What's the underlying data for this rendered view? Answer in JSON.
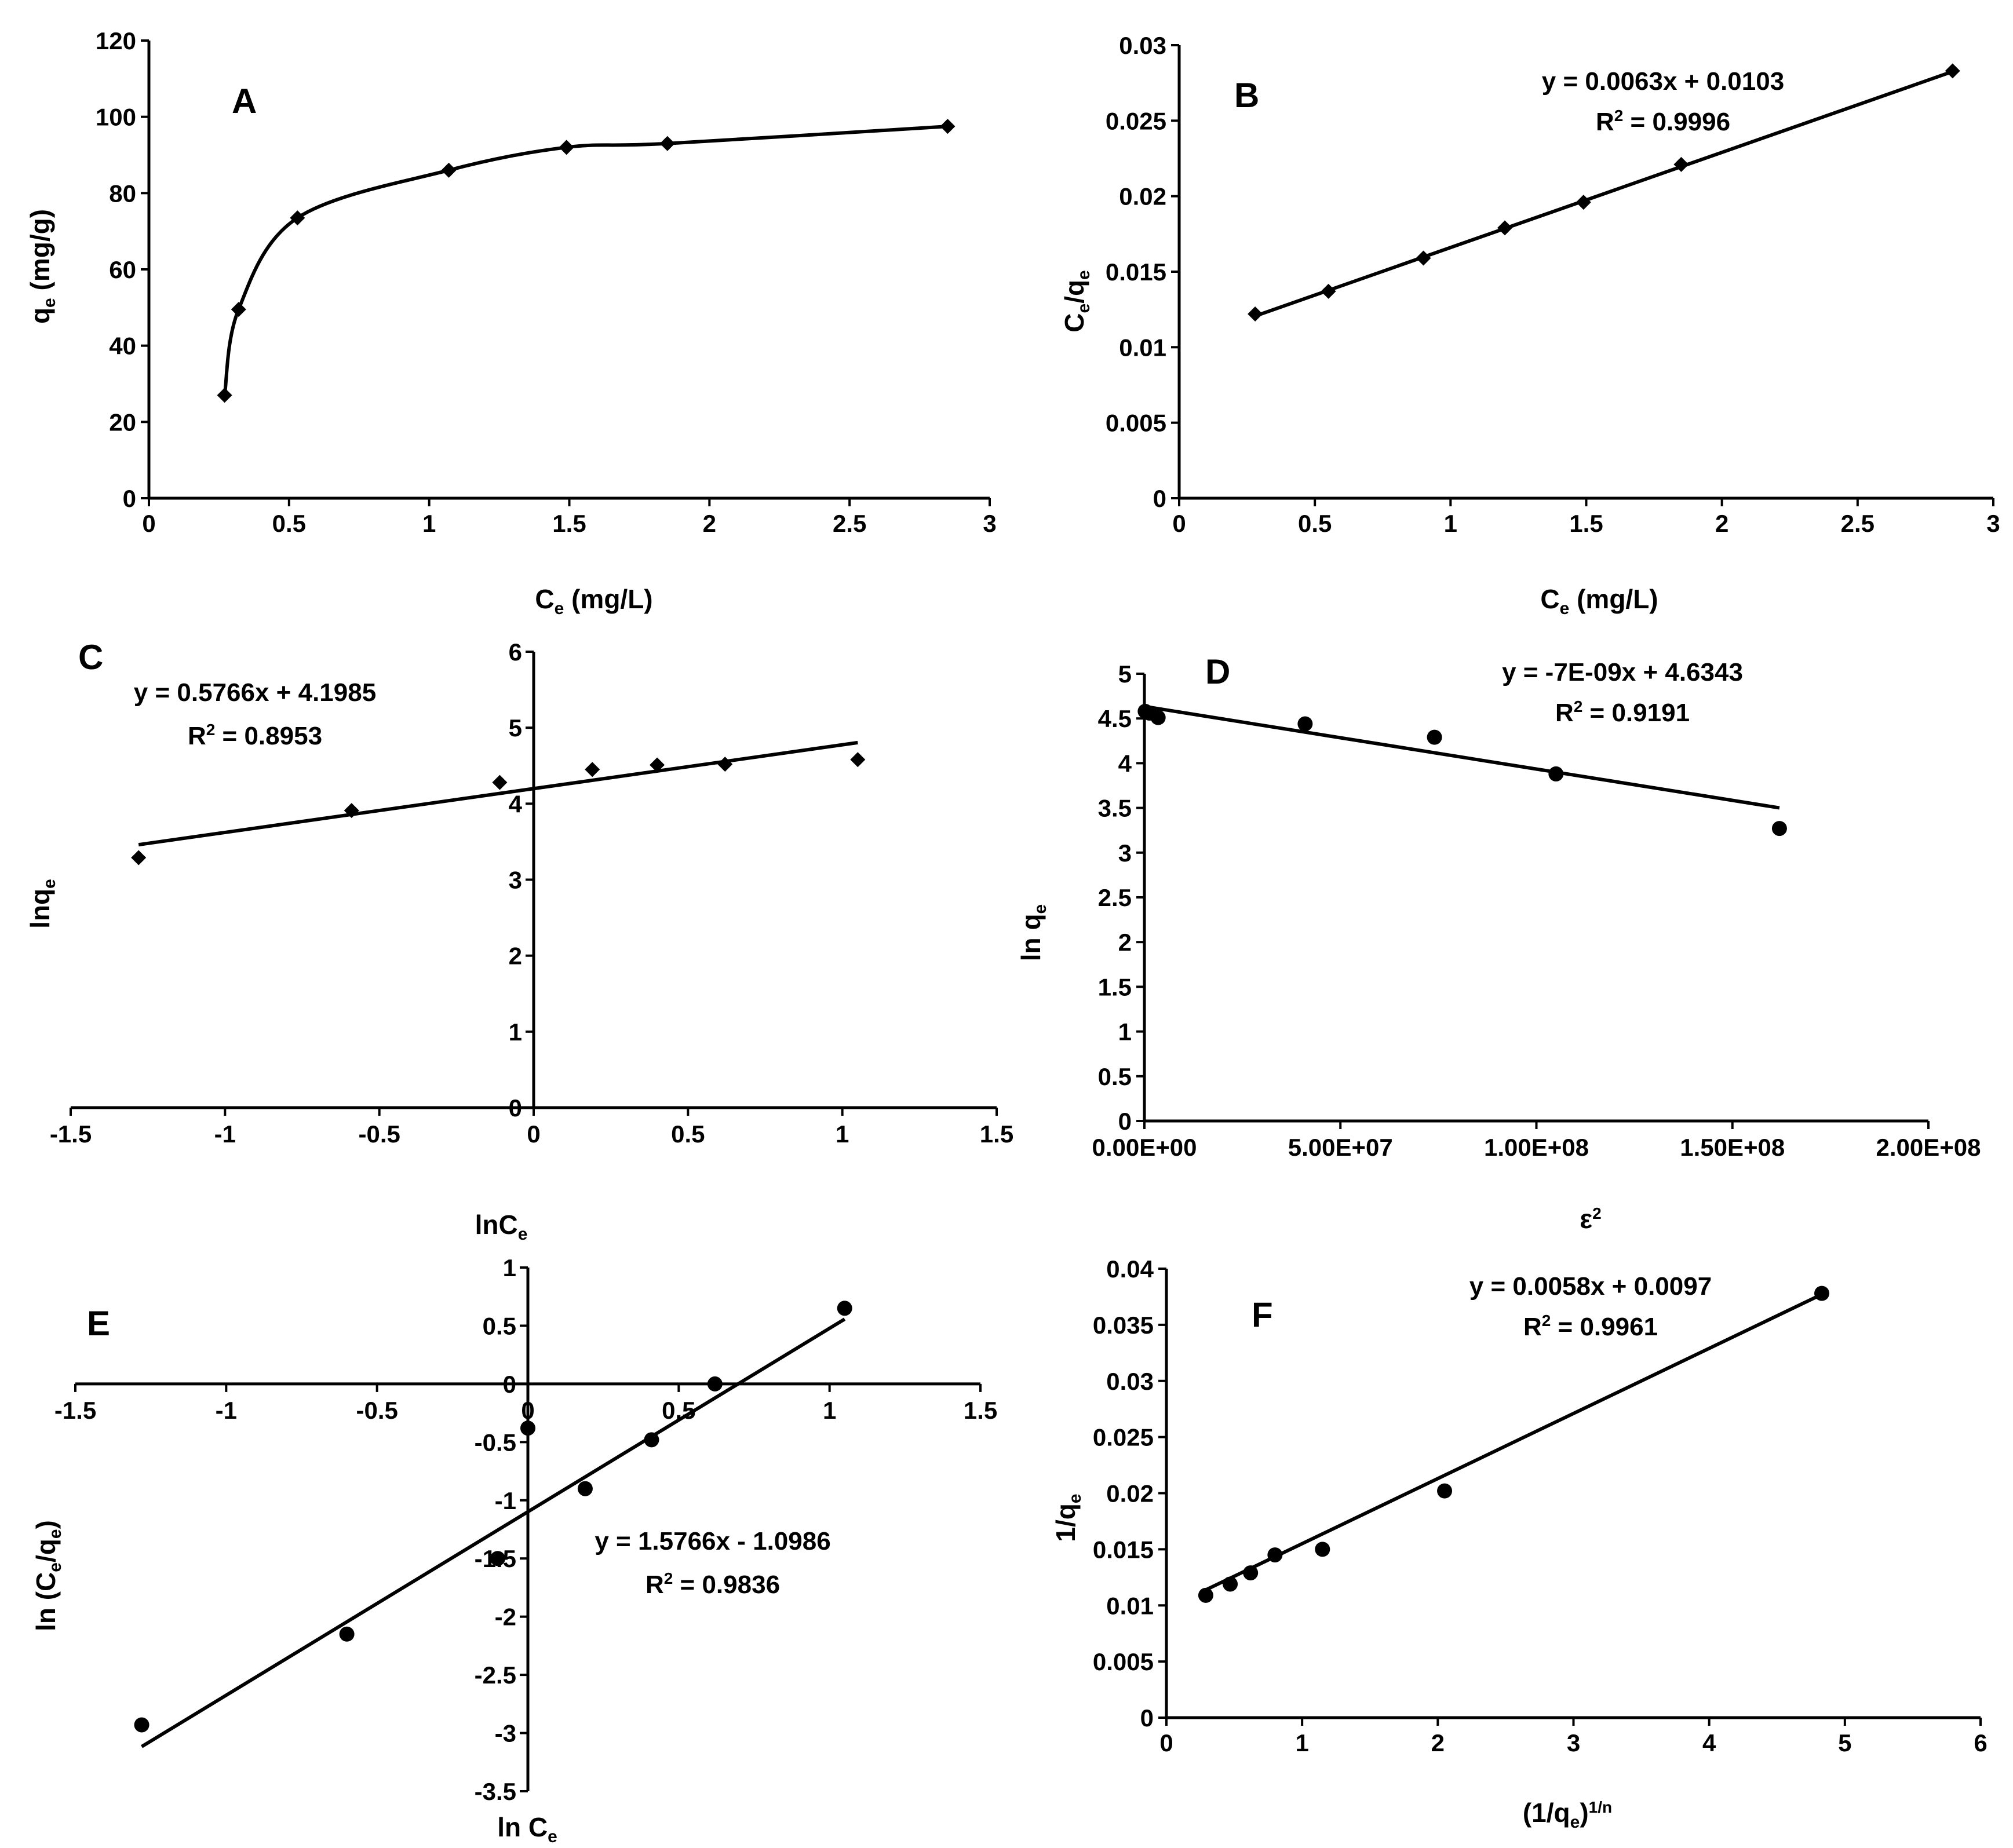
{
  "figure": {
    "panels": [
      {
        "id": "A",
        "label": "A",
        "xlabel": "C",
        "xlabel_sub": "e",
        "xlabel_tail": " (mg/L)",
        "ylabel": "q",
        "ylabel_sub": "e",
        "ylabel_tail": " (mg/g)",
        "equation": "",
        "r2": ""
      },
      {
        "id": "B",
        "label": "B",
        "xlabel": "C",
        "xlabel_sub": "e",
        "xlabel_tail": " (mg/L)",
        "ylabel": "C",
        "ylabel_sub": "e",
        "ylabel_tail": "/q",
        "ylabel_sub2": "e",
        "equation": "y = 0.0063x + 0.0103",
        "r2": "R",
        "r2_sup": "2",
        "r2_tail": " = 0.9996"
      },
      {
        "id": "C",
        "label": "C",
        "xlabel": "lnC",
        "xlabel_sub": "e",
        "ylabel": "lnq",
        "ylabel_sub": "e",
        "equation": "y = 0.5766x + 4.1985",
        "r2": "R",
        "r2_sup": "2",
        "r2_tail": " = 0.8953"
      },
      {
        "id": "D",
        "label": "D",
        "xlabel": "ε",
        "xlabel_sup": "2",
        "ylabel": "ln q",
        "ylabel_sub": "e",
        "equation": "y = -7E-09x + 4.6343",
        "r2": "R",
        "r2_sup": "2",
        "r2_tail": " = 0.9191"
      },
      {
        "id": "E",
        "label": "E",
        "xlabel": "ln C",
        "xlabel_sub": "e",
        "ylabel": "ln (C",
        "ylabel_sub": "e",
        "ylabel_tail": "/q",
        "ylabel_sub2": "e",
        "ylabel_tail2": ")",
        "equation": "y = 1.5766x - 1.0986",
        "r2": "R",
        "r2_sup": "2",
        "r2_tail": " = 0.9836"
      },
      {
        "id": "F",
        "label": "F",
        "xlabel": "(1/q",
        "xlabel_sub": "e",
        "xlabel_tail": ")",
        "xlabel_sup": "1/n",
        "ylabel": "1/q",
        "ylabel_sub": "e",
        "equation": "y = 0.0058x + 0.0097",
        "r2": "R",
        "r2_sup": "2",
        "r2_tail": " = 0.9961"
      }
    ]
  },
  "chart_data": [
    {
      "panel": "A",
      "type": "line",
      "smooth": true,
      "marker": "diamond",
      "title": "A",
      "xlabel": "Ce (mg/L)",
      "ylabel": "qe (mg/g)",
      "xlim": [
        0,
        3
      ],
      "ylim": [
        0,
        120
      ],
      "xticks": [
        0,
        0.5,
        1,
        1.5,
        2,
        2.5,
        3
      ],
      "xtick_labels": [
        "0",
        "0.5",
        "1",
        "1.5",
        "2",
        "2.5",
        "3"
      ],
      "yticks": [
        0,
        20,
        40,
        60,
        80,
        100,
        120
      ],
      "ytick_labels": [
        "0",
        "20",
        "40",
        "60",
        "80",
        "100",
        "120"
      ],
      "x": [
        0.27,
        0.32,
        0.53,
        1.07,
        1.49,
        1.85,
        2.85
      ],
      "y": [
        27,
        49.5,
        73.5,
        86,
        92,
        93,
        97.5
      ]
    },
    {
      "panel": "B",
      "type": "scatter",
      "marker": "diamond",
      "title": "B",
      "xlabel": "Ce (mg/L)",
      "ylabel": "Ce/qe",
      "xlim": [
        0,
        3
      ],
      "ylim": [
        0,
        0.03
      ],
      "xticks": [
        0,
        0.5,
        1,
        1.5,
        2,
        2.5,
        3
      ],
      "xtick_labels": [
        "0",
        "0.5",
        "1",
        "1.5",
        "2",
        "2.5",
        "3"
      ],
      "yticks": [
        0,
        0.005,
        0.01,
        0.015,
        0.02,
        0.025,
        0.03
      ],
      "ytick_labels": [
        "0",
        "0.005",
        "0.01",
        "0.015",
        "0.02",
        "0.025",
        "0.03"
      ],
      "x": [
        0.28,
        0.55,
        0.9,
        1.2,
        1.49,
        1.85,
        2.85
      ],
      "y": [
        0.0122,
        0.0137,
        0.0159,
        0.0179,
        0.0196,
        0.0221,
        0.0283
      ],
      "trendline": {
        "slope": 0.0063,
        "intercept": 0.0103,
        "x_range": [
          0.28,
          2.85
        ]
      },
      "annotation": "y = 0.0063x + 0.0103; R2 = 0.9996"
    },
    {
      "panel": "C",
      "type": "scatter",
      "marker": "diamond",
      "title": "C",
      "xlabel": "lnCe",
      "ylabel": "lnqe",
      "xlim": [
        -1.5,
        1.5
      ],
      "ylim": [
        0,
        6
      ],
      "xticks": [
        -1.5,
        -1,
        -0.5,
        0,
        0.5,
        1,
        1.5
      ],
      "xtick_labels": [
        "-1.5",
        "-1",
        "-0.5",
        "0",
        "0.5",
        "1",
        "1.5"
      ],
      "yticks": [
        0,
        1,
        2,
        3,
        4,
        5,
        6
      ],
      "ytick_labels": [
        "0",
        "1",
        "2",
        "3",
        "4",
        "5",
        "6"
      ],
      "x": [
        -1.28,
        -0.59,
        -0.11,
        0.19,
        0.4,
        0.62,
        1.05
      ],
      "y": [
        3.29,
        3.91,
        4.28,
        4.45,
        4.51,
        4.52,
        4.58
      ],
      "trendline": {
        "slope": 0.5766,
        "intercept": 4.1985,
        "x_range": [
          -1.28,
          1.05
        ]
      },
      "annotation": "y = 0.5766x + 4.1985; R2 = 0.8953"
    },
    {
      "panel": "D",
      "type": "scatter",
      "marker": "circle",
      "title": "D",
      "xlabel": "ε2",
      "ylabel": "ln qe",
      "xlim": [
        0,
        200000000
      ],
      "ylim": [
        0,
        5
      ],
      "xticks": [
        0,
        50000000,
        100000000,
        150000000,
        200000000
      ],
      "xtick_labels": [
        "0.00E+00",
        "5.00E+07",
        "1.00E+08",
        "1.50E+08",
        "2.00E+08"
      ],
      "yticks": [
        0,
        0.5,
        1,
        1.5,
        2,
        2.5,
        3,
        3.5,
        4,
        4.5,
        5
      ],
      "ytick_labels": [
        "0",
        "0.5",
        "1",
        "1.5",
        "2",
        "2.5",
        "3",
        "3.5",
        "4",
        "4.5",
        "5"
      ],
      "x": [
        200000,
        1300000,
        3500000,
        41000000,
        74000000,
        105000000,
        162000000
      ],
      "y": [
        4.58,
        4.56,
        4.51,
        4.44,
        4.29,
        3.88,
        3.27
      ],
      "trendline": {
        "slope": -7e-09,
        "intercept": 4.6343,
        "x_range": [
          0,
          162000000
        ]
      },
      "annotation": "y = -7E-09x + 4.6343; R2 = 0.9191"
    },
    {
      "panel": "E",
      "type": "scatter",
      "marker": "circle",
      "title": "E",
      "xlabel": "ln Ce",
      "ylabel": "ln (Ce/qe)",
      "xlim": [
        -1.5,
        1.5
      ],
      "ylim": [
        -3.5,
        1
      ],
      "xticks": [
        -1.5,
        -1,
        -0.5,
        0,
        0.5,
        1,
        1.5
      ],
      "xtick_labels": [
        "-1.5",
        "-1",
        "-0.5",
        "0",
        "0.5",
        "1",
        "1.5"
      ],
      "yticks": [
        -3.5,
        -3,
        -2.5,
        -2,
        -1.5,
        -1,
        -0.5,
        0,
        0.5,
        1
      ],
      "ytick_labels": [
        "-3.5",
        "-3",
        "-2.5",
        "-2",
        "-1.5",
        "-1",
        "-0.5",
        "0",
        "0.5",
        "1"
      ],
      "x": [
        -1.28,
        -0.6,
        -0.1,
        0.0,
        0.19,
        0.41,
        0.62,
        1.05
      ],
      "y": [
        -2.93,
        -2.15,
        -1.5,
        -0.38,
        -0.9,
        -0.48,
        0.0,
        0.65
      ],
      "trendline": {
        "slope": 1.5766,
        "intercept": -1.0986,
        "x_range": [
          -1.28,
          1.05
        ]
      },
      "annotation": "y = 1.5766x - 1.0986; R2 = 0.9836"
    },
    {
      "panel": "F",
      "type": "scatter",
      "marker": "circle",
      "title": "F",
      "xlabel": "(1/qe)1/n",
      "ylabel": "1/qe",
      "xlim": [
        0,
        6
      ],
      "ylim": [
        0,
        0.04
      ],
      "xticks": [
        0,
        1,
        2,
        3,
        4,
        5,
        6
      ],
      "xtick_labels": [
        "0",
        "1",
        "2",
        "3",
        "4",
        "5",
        "6"
      ],
      "yticks": [
        0,
        0.005,
        0.01,
        0.015,
        0.02,
        0.025,
        0.03,
        0.035,
        0.04
      ],
      "ytick_labels": [
        "0",
        "0.005",
        "0.01",
        "0.015",
        "0.02",
        "0.025",
        "0.03",
        "0.035",
        "0.04"
      ],
      "x": [
        0.29,
        0.47,
        0.62,
        0.8,
        1.15,
        2.05,
        4.83
      ],
      "y": [
        0.0109,
        0.0119,
        0.0129,
        0.0145,
        0.015,
        0.0202,
        0.0378
      ],
      "trendline": {
        "slope": 0.0058,
        "intercept": 0.0097,
        "x_range": [
          0.27,
          4.83
        ]
      },
      "annotation": "y = 0.0058x + 0.0097; R2 = 0.9961"
    }
  ]
}
